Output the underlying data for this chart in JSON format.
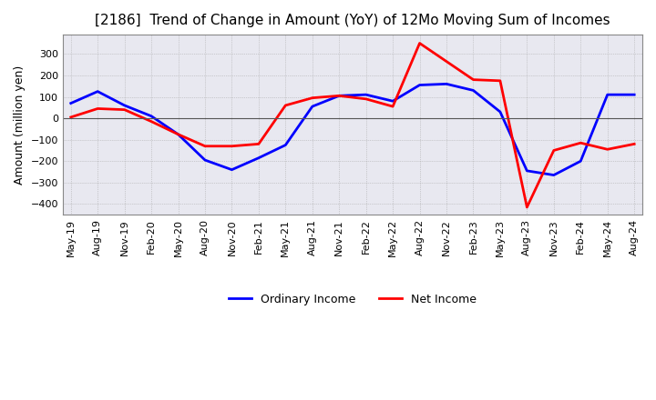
{
  "title": "[2186]  Trend of Change in Amount (YoY) of 12Mo Moving Sum of Incomes",
  "ylabel": "Amount (million yen)",
  "ylim": [
    -450,
    390
  ],
  "yticks": [
    -400,
    -300,
    -200,
    -100,
    0,
    100,
    200,
    300
  ],
  "background_color": "#ffffff",
  "plot_bg_color": "#e8e8f0",
  "grid_color": "#aaaaaa",
  "ordinary_income_color": "#0000ff",
  "net_income_color": "#ff0000",
  "x_labels": [
    "May-19",
    "Aug-19",
    "Nov-19",
    "Feb-20",
    "May-20",
    "Aug-20",
    "Nov-20",
    "Feb-21",
    "May-21",
    "Aug-21",
    "Nov-21",
    "Feb-22",
    "May-22",
    "Aug-22",
    "Nov-22",
    "Feb-23",
    "May-23",
    "Aug-23",
    "Nov-23",
    "Feb-24",
    "May-24",
    "Aug-24"
  ],
  "ordinary_income": [
    70,
    125,
    60,
    10,
    -75,
    -195,
    -240,
    -185,
    -125,
    55,
    105,
    110,
    80,
    155,
    160,
    130,
    30,
    -245,
    -265,
    -200,
    110,
    110
  ],
  "net_income": [
    5,
    45,
    40,
    -15,
    -75,
    -130,
    -130,
    -120,
    60,
    95,
    105,
    90,
    55,
    350,
    265,
    180,
    175,
    -415,
    -150,
    -115,
    -145,
    -120
  ],
  "legend_loc": "lower center",
  "linewidth": 2.0,
  "title_fontsize": 11,
  "axis_fontsize": 9,
  "tick_fontsize": 8
}
